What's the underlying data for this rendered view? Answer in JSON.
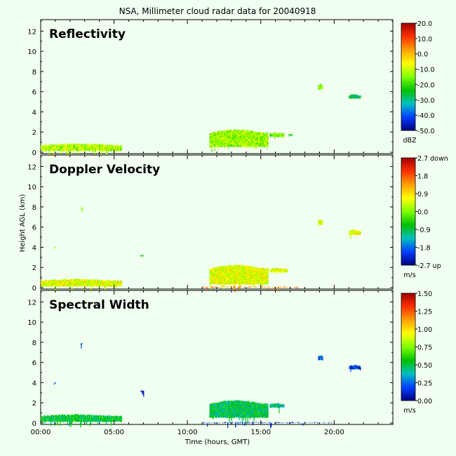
{
  "title": "NSA, Millimeter cloud radar data for 20040918",
  "xlabel": "Time (hours, GMT)",
  "ylabel": "Height AGL (km)",
  "x_ticks": [
    "00:00",
    "05:00",
    "10:00",
    "15:00",
    "20:00"
  ],
  "y_ticks": [
    "0",
    "2",
    "4",
    "6",
    "8",
    "10",
    "12"
  ],
  "colorbars": [
    {
      "ticks": [
        "20.0",
        "10.0",
        "0.0",
        "-10.0",
        "-20.0",
        "-30.0",
        "-40.0",
        "-50.0"
      ],
      "unit": "dBZ"
    },
    {
      "ticks": [
        "2.7 down",
        "1.8",
        "0.9",
        "0.0",
        "-0.9",
        "-1.8",
        "-2.7 up"
      ],
      "unit": "m/s"
    },
    {
      "ticks": [
        "1.50",
        "1.25",
        "1.00",
        "0.75",
        "0.50",
        "0.25",
        "0.00"
      ],
      "unit": "m/s"
    }
  ],
  "colors": {
    "background": "#f0fff0",
    "scale": [
      "#00007f",
      "#0040ff",
      "#00c0c0",
      "#00c000",
      "#80ff00",
      "#ffff00",
      "#ffa000",
      "#ff3000",
      "#a00000"
    ]
  },
  "chart_data": [
    {
      "type": "heatmap",
      "title": "Reflectivity",
      "xlim": [
        0,
        24
      ],
      "ylim": [
        0,
        13
      ],
      "echoes": [
        {
          "x": [
            0.0,
            5.5
          ],
          "y": [
            0.1,
            0.9
          ],
          "level": 0.55
        },
        {
          "x": [
            11.5,
            15.5
          ],
          "y": [
            0.5,
            2.3
          ],
          "level": 0.52
        },
        {
          "x": [
            15.6,
            16.6
          ],
          "y": [
            1.5,
            2.0
          ],
          "level": 0.5
        },
        {
          "x": [
            16.9,
            17.1
          ],
          "y": [
            1.6,
            1.9
          ],
          "level": 0.45
        },
        {
          "x": [
            18.9,
            19.2
          ],
          "y": [
            6.2,
            6.8
          ],
          "level": 0.5
        },
        {
          "x": [
            21.0,
            21.8
          ],
          "y": [
            5.3,
            5.8
          ],
          "level": 0.3
        }
      ]
    },
    {
      "type": "heatmap",
      "title": "Doppler Velocity",
      "xlim": [
        0,
        24
      ],
      "ylim": [
        0,
        13
      ],
      "echoes": [
        {
          "x": [
            0.0,
            5.5
          ],
          "y": [
            0.1,
            0.9
          ],
          "level": 0.6
        },
        {
          "x": [
            11.5,
            15.5
          ],
          "y": [
            0.3,
            2.3
          ],
          "level": 0.6
        },
        {
          "x": [
            15.6,
            16.8
          ],
          "y": [
            1.5,
            2.0
          ],
          "level": 0.6
        },
        {
          "x": [
            18.9,
            19.2
          ],
          "y": [
            6.2,
            6.8
          ],
          "level": 0.6
        },
        {
          "x": [
            21.0,
            21.8
          ],
          "y": [
            5.2,
            5.8
          ],
          "level": 0.6
        },
        {
          "x": [
            2.7,
            2.8
          ],
          "y": [
            7.8,
            8.0
          ],
          "level": 0.5
        },
        {
          "x": [
            0.9,
            1.0
          ],
          "y": [
            3.9,
            4.1
          ],
          "level": 0.55
        },
        {
          "x": [
            6.8,
            7.0
          ],
          "y": [
            3.1,
            3.3
          ],
          "level": 0.4
        },
        {
          "x": [
            11.0,
            17.5
          ],
          "y": [
            0.0,
            0.15
          ],
          "level": 0.8
        }
      ]
    },
    {
      "type": "heatmap",
      "title": "Spectral Width",
      "xlim": [
        0,
        24
      ],
      "ylim": [
        0,
        13
      ],
      "echoes": [
        {
          "x": [
            0.0,
            5.5
          ],
          "y": [
            0.1,
            0.9
          ],
          "level": 0.35
        },
        {
          "x": [
            11.5,
            15.5
          ],
          "y": [
            0.5,
            2.3
          ],
          "level": 0.33
        },
        {
          "x": [
            15.6,
            16.6
          ],
          "y": [
            1.5,
            2.0
          ],
          "level": 0.3
        },
        {
          "x": [
            18.9,
            19.2
          ],
          "y": [
            6.2,
            6.8
          ],
          "level": 0.15
        },
        {
          "x": [
            21.0,
            21.8
          ],
          "y": [
            5.3,
            5.8
          ],
          "level": 0.12
        },
        {
          "x": [
            2.7,
            2.8
          ],
          "y": [
            7.8,
            8.0
          ],
          "level": 0.1
        },
        {
          "x": [
            0.9,
            1.0
          ],
          "y": [
            3.9,
            4.1
          ],
          "level": 0.1
        },
        {
          "x": [
            6.8,
            7.0
          ],
          "y": [
            3.1,
            3.3
          ],
          "level": 0.1
        },
        {
          "x": [
            11.0,
            20.0
          ],
          "y": [
            0.0,
            0.12
          ],
          "level": 0.08
        }
      ]
    }
  ]
}
